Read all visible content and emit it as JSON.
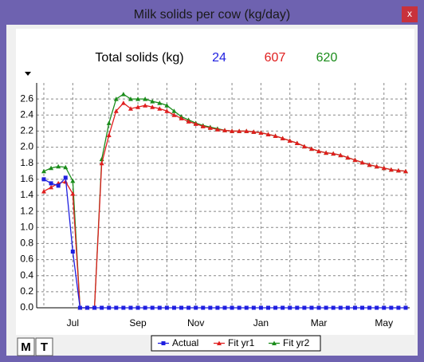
{
  "window": {
    "title": "Milk solids per cow (kg/day)",
    "close": "x",
    "buttons": [
      "M",
      "T"
    ]
  },
  "chart_data": {
    "type": "line",
    "subtitle": "Total solids (kg)",
    "categories": [
      null,
      null,
      null,
      null,
      "Jul",
      null,
      null,
      null,
      null,
      null,
      null,
      null,
      null,
      "Sep",
      null,
      null,
      null,
      null,
      null,
      null,
      null,
      "Nov",
      null,
      null,
      null,
      null,
      null,
      null,
      null,
      null,
      "Jan",
      null,
      null,
      null,
      null,
      null,
      null,
      null,
      "Mar",
      null,
      null,
      null,
      null,
      null,
      null,
      null,
      null,
      "May",
      null,
      null,
      null
    ],
    "series": [
      {
        "name": "Actual",
        "color": "#1f1fe0",
        "marker": "square",
        "total": 24,
        "values": [
          1.6,
          1.55,
          1.52,
          1.62,
          0.7,
          0,
          0,
          0,
          0,
          0,
          0,
          0,
          0,
          0,
          0,
          0,
          0,
          0,
          0,
          0,
          0,
          0,
          0,
          0,
          0,
          0,
          0,
          0,
          0,
          0,
          0,
          0,
          0,
          0,
          0,
          0,
          0,
          0,
          0,
          0,
          0,
          0,
          0,
          0,
          0,
          0,
          0,
          0,
          0,
          0,
          0
        ]
      },
      {
        "name": "Fit yr1",
        "color": "#e01e1e",
        "marker": "triangle",
        "total": 607,
        "values": [
          1.45,
          1.5,
          1.55,
          1.57,
          1.42,
          0,
          0,
          0,
          1.8,
          2.15,
          2.45,
          2.55,
          2.48,
          2.5,
          2.52,
          2.5,
          2.48,
          2.45,
          2.4,
          2.36,
          2.32,
          2.29,
          2.26,
          2.24,
          2.22,
          2.21,
          2.2,
          2.2,
          2.2,
          2.19,
          2.18,
          2.16,
          2.14,
          2.11,
          2.08,
          2.05,
          2.01,
          1.98,
          1.95,
          1.93,
          1.92,
          1.9,
          1.87,
          1.84,
          1.81,
          1.78,
          1.76,
          1.74,
          1.72,
          1.71,
          1.7
        ]
      },
      {
        "name": "Fit yr2",
        "color": "#1a8c1a",
        "marker": "triangle",
        "total": 620,
        "values": [
          1.7,
          1.74,
          1.76,
          1.75,
          1.58,
          0,
          0,
          0,
          1.85,
          2.3,
          2.6,
          2.66,
          2.6,
          2.6,
          2.6,
          2.57,
          2.55,
          2.52,
          2.45,
          2.38,
          2.34,
          2.3,
          2.27,
          2.25,
          2.23,
          2.21,
          2.2,
          2.2,
          2.2,
          2.19,
          2.18,
          2.16,
          2.14,
          2.11,
          2.08,
          2.05,
          2.01,
          1.98,
          1.95,
          1.93,
          1.92,
          1.9,
          1.87,
          1.84,
          1.81,
          1.78,
          1.76,
          1.74,
          1.72,
          1.71,
          1.7
        ]
      }
    ],
    "ylim": [
      0,
      2.8
    ],
    "yticks": [
      {
        "value": 0,
        "label": "0.0"
      },
      0.2,
      0.4,
      0.6,
      0.8,
      {
        "value": 1,
        "label": "1.0"
      },
      1.2,
      1.4,
      1.6,
      1.8,
      {
        "value": 2,
        "label": "2.0"
      },
      2.2,
      2.4,
      2.6
    ],
    "grid": true,
    "legend": "bottom"
  }
}
